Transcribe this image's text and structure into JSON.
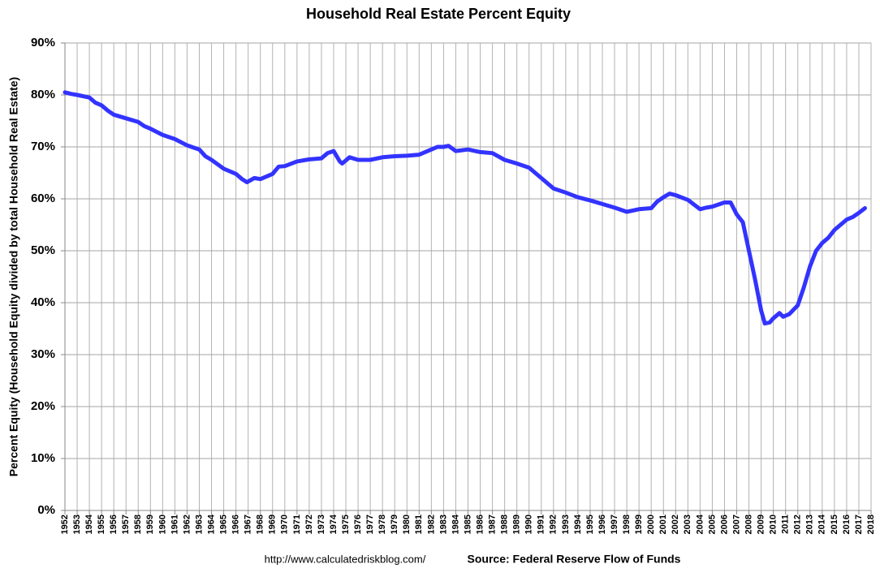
{
  "chart_data": {
    "type": "line",
    "title": "Household Real Estate Percent Equity",
    "y_label": "Percent Equity (Household Equity divided by total Household Real Estate)",
    "footer_url": "http://www.calculatedriskblog.com/",
    "footer_source": "Source: Federal Reserve Flow of Funds",
    "x": [
      1952,
      1952.5,
      1953,
      1954,
      1954.5,
      1955,
      1955.5,
      1956,
      1957,
      1958,
      1958.5,
      1959,
      1960,
      1961,
      1962,
      1963,
      1963.5,
      1964,
      1965,
      1966,
      1966.5,
      1966.9,
      1967.5,
      1968,
      1969,
      1969.5,
      1970,
      1971,
      1972,
      1973,
      1973.5,
      1974,
      1974.5,
      1974.7,
      1975.3,
      1976,
      1977,
      1978,
      1979,
      1980,
      1981,
      1982,
      1982.5,
      1983,
      1983.4,
      1984,
      1985,
      1986,
      1987,
      1988,
      1989,
      1990,
      1991,
      1992,
      1993,
      1994,
      1995,
      1996,
      1997,
      1998,
      1999,
      2000,
      2000.5,
      2001,
      2001.5,
      2002,
      2003,
      2004,
      2004.5,
      2005,
      2006,
      2006.5,
      2007,
      2007.5,
      2008,
      2008.5,
      2009,
      2009.3,
      2009.7,
      2010,
      2010.5,
      2010.8,
      2011.3,
      2012,
      2012.5,
      2013,
      2013.5,
      2014,
      2014.5,
      2015,
      2015.5,
      2016,
      2016.5,
      2017,
      2017.5
    ],
    "series": [
      {
        "name": "Percent Equity",
        "color": "#3333ff",
        "values": [
          80.5,
          80.2,
          80.0,
          79.5,
          78.5,
          78.0,
          77.0,
          76.2,
          75.5,
          74.8,
          74.0,
          73.5,
          72.3,
          71.5,
          70.3,
          69.5,
          68.2,
          67.5,
          65.8,
          64.8,
          63.8,
          63.2,
          64.0,
          63.8,
          64.8,
          66.2,
          66.3,
          67.2,
          67.6,
          67.8,
          68.8,
          69.2,
          67.2,
          66.8,
          68.0,
          67.5,
          67.5,
          68.0,
          68.2,
          68.3,
          68.5,
          69.5,
          70.0,
          70.0,
          70.2,
          69.2,
          69.5,
          69.0,
          68.8,
          67.5,
          66.8,
          66.0,
          64.0,
          62.0,
          61.2,
          60.3,
          59.7,
          59.0,
          58.3,
          57.5,
          58.0,
          58.2,
          59.5,
          60.3,
          61.0,
          60.7,
          59.8,
          58.0,
          58.3,
          58.5,
          59.3,
          59.3,
          57.0,
          55.5,
          50.0,
          44.5,
          38.5,
          36.0,
          36.2,
          37.0,
          38.0,
          37.3,
          37.8,
          39.5,
          43.0,
          47.0,
          50.0,
          51.5,
          52.5,
          54.0,
          55.0,
          56.0,
          56.5,
          57.3,
          58.2
        ]
      }
    ],
    "xlim": [
      1952,
      2018
    ],
    "xticks": [
      1952,
      1953,
      1954,
      1955,
      1956,
      1957,
      1958,
      1959,
      1960,
      1961,
      1962,
      1963,
      1964,
      1965,
      1966,
      1967,
      1968,
      1969,
      1970,
      1971,
      1972,
      1973,
      1974,
      1975,
      1976,
      1977,
      1978,
      1979,
      1980,
      1981,
      1982,
      1983,
      1984,
      1985,
      1986,
      1987,
      1988,
      1989,
      1990,
      1991,
      1992,
      1993,
      1994,
      1995,
      1996,
      1997,
      1998,
      1999,
      2000,
      2001,
      2002,
      2003,
      2004,
      2005,
      2006,
      2007,
      2008,
      2009,
      2010,
      2011,
      2012,
      2013,
      2014,
      2015,
      2016,
      2017,
      2018
    ],
    "ylim": [
      0,
      90
    ],
    "yticks": [
      {
        "value": 0,
        "label": "0%"
      },
      {
        "value": 10,
        "label": "10%"
      },
      {
        "value": 20,
        "label": "20%"
      },
      {
        "value": 30,
        "label": "30%"
      },
      {
        "value": 40,
        "label": "40%"
      },
      {
        "value": 50,
        "label": "50%"
      },
      {
        "value": 60,
        "label": "60%"
      },
      {
        "value": 70,
        "label": "70%"
      },
      {
        "value": 80,
        "label": "80%"
      },
      {
        "value": 90,
        "label": "90%"
      }
    ],
    "grid": true
  }
}
